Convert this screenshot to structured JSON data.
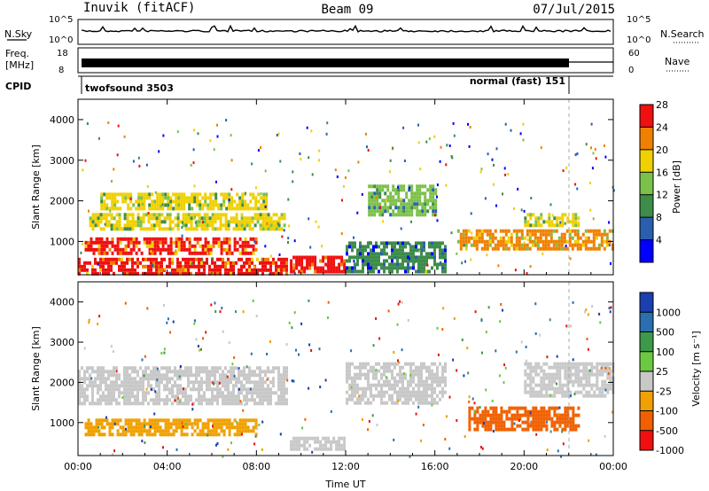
{
  "header": {
    "station": "Inuvik (fitACF)",
    "beam": "Beam 09",
    "date": "07/Jul/2015"
  },
  "noise_panel": {
    "left_label": "N.Sky",
    "right_label": "N.Search",
    "ticks_left": [
      "10^5",
      "10^0"
    ],
    "ticks_right": [
      "10^5",
      "10^0"
    ]
  },
  "freq_panel": {
    "left_label_top": "Freq.",
    "left_label_bottom": "[MHz]",
    "right_label": "Nave",
    "ticks_left": [
      "18",
      "8"
    ],
    "ticks_right": [
      "60",
      "0"
    ]
  },
  "cpid_panel": {
    "label": "CPID",
    "program_1": "twofsound 3503",
    "program_2": "normal (fast) 151"
  },
  "chart_data": [
    {
      "type": "heatmap",
      "title": "",
      "xlabel": "",
      "ylabel": "Slant Range [km]",
      "x_ticks": [
        "00:00",
        "04:00",
        "08:00",
        "12:00",
        "16:00",
        "20:00",
        "00:00"
      ],
      "y_ticks": [
        1000,
        2000,
        3000,
        4000
      ],
      "ylim": [
        180,
        4500
      ],
      "xlim_hours": [
        0,
        24
      ],
      "colorbar": {
        "label": "Power [dB]",
        "ticks": [
          "4",
          "8",
          "12",
          "16",
          "20",
          "24",
          "28"
        ],
        "colors": [
          "#0000ff",
          "#2a5fb0",
          "#3d8c4a",
          "#7bc04a",
          "#f0d000",
          "#f08000",
          "#f01010"
        ]
      },
      "echo_regions": [
        {
          "t": [
            0.0,
            9.3
          ],
          "range": [
            250,
            600
          ],
          "level": 28
        },
        {
          "t": [
            0.3,
            8.0
          ],
          "range": [
            700,
            1100
          ],
          "level": 26
        },
        {
          "t": [
            0.5,
            9.3
          ],
          "range": [
            1300,
            1700
          ],
          "level": 20
        },
        {
          "t": [
            1.0,
            8.5
          ],
          "range": [
            1800,
            2200
          ],
          "level": 18
        },
        {
          "t": [
            9.5,
            12.0
          ],
          "range": [
            280,
            650
          ],
          "level": 30
        },
        {
          "t": [
            12.0,
            16.5
          ],
          "range": [
            300,
            1000
          ],
          "level": 12
        },
        {
          "t": [
            13.0,
            16.0
          ],
          "range": [
            1700,
            2400
          ],
          "level": 14
        },
        {
          "t": [
            17.0,
            24.0
          ],
          "range": [
            800,
            1300
          ],
          "level": 22
        },
        {
          "t": [
            20.0,
            22.5
          ],
          "range": [
            1400,
            1700
          ],
          "level": 20
        }
      ]
    },
    {
      "type": "heatmap",
      "title": "",
      "xlabel": "Time UT",
      "ylabel": "Slant Range [km]",
      "x_ticks": [
        "00:00",
        "04:00",
        "08:00",
        "12:00",
        "16:00",
        "20:00",
        "00:00"
      ],
      "y_ticks": [
        1000,
        2000,
        3000,
        4000
      ],
      "ylim": [
        180,
        4500
      ],
      "xlim_hours": [
        0,
        24
      ],
      "colorbar": {
        "label": "Velocity [m s⁻¹]",
        "ticks": [
          "1000",
          "500",
          "100",
          "25",
          "-25",
          "-100",
          "-500",
          "-1000"
        ],
        "colors": [
          "#1a3fb0",
          "#2a6fb0",
          "#3d9a4a",
          "#6cc840",
          "#c8c8c8",
          "#f0a000",
          "#f06000",
          "#f01010"
        ]
      },
      "echo_regions": [
        {
          "t": [
            0.0,
            9.3
          ],
          "range": [
            1500,
            2400
          ],
          "velocity": "ground"
        },
        {
          "t": [
            0.3,
            8.0
          ],
          "range": [
            700,
            1100
          ],
          "velocity": "-100"
        },
        {
          "t": [
            9.5,
            12.0
          ],
          "range": [
            300,
            650
          ],
          "velocity": "ground"
        },
        {
          "t": [
            12.0,
            16.5
          ],
          "range": [
            1500,
            2500
          ],
          "velocity": "ground"
        },
        {
          "t": [
            17.5,
            22.5
          ],
          "range": [
            800,
            1400
          ],
          "velocity": "-500"
        },
        {
          "t": [
            20.0,
            24.0
          ],
          "range": [
            1700,
            2500
          ],
          "velocity": "ground"
        }
      ]
    }
  ]
}
